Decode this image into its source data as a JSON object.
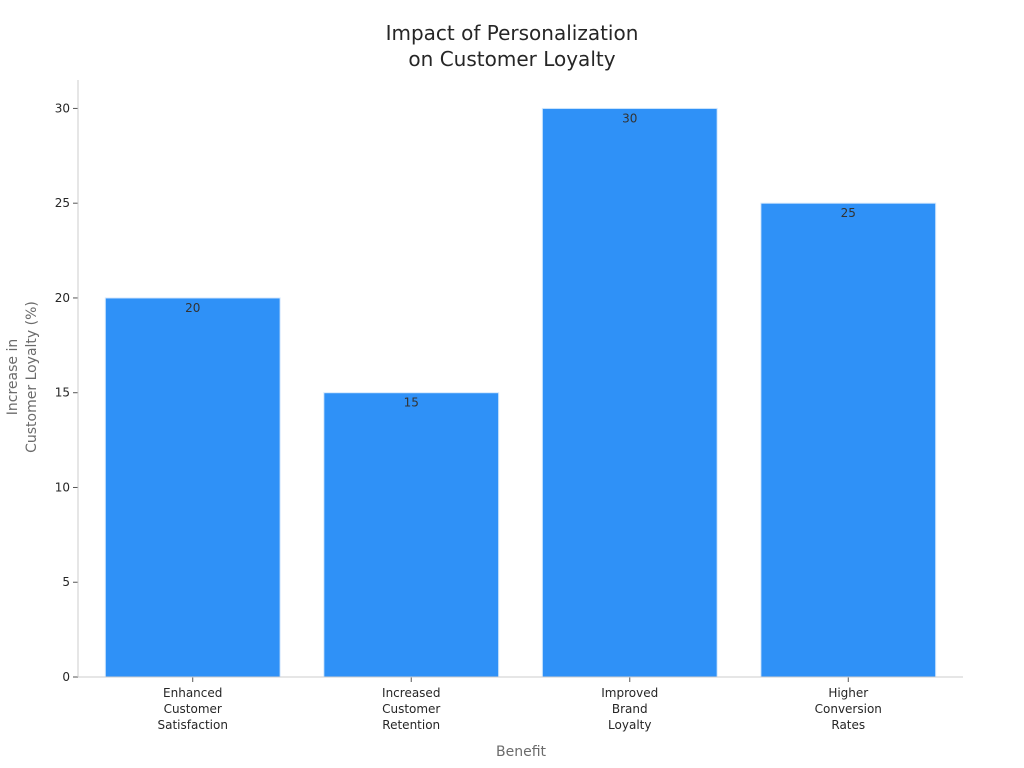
{
  "chart_data": {
    "type": "bar",
    "title": [
      "Impact of Personalization",
      "on Customer Loyalty"
    ],
    "xlabel": "Benefit",
    "ylabel": [
      "Increase in",
      "Customer Loyalty (%)"
    ],
    "categories": [
      [
        "Enhanced",
        "Customer",
        "Satisfaction"
      ],
      [
        "Increased",
        "Customer",
        "Retention"
      ],
      [
        "Improved",
        "Brand",
        "Loyalty"
      ],
      [
        "Higher",
        "Conversion",
        "Rates"
      ]
    ],
    "values": [
      20,
      15,
      30,
      25
    ],
    "data_labels": [
      "20",
      "15",
      "30",
      "25"
    ],
    "yticks": [
      0,
      5,
      10,
      15,
      20,
      25,
      30
    ],
    "ylim": [
      0,
      31.5
    ],
    "grid": false,
    "colors": {
      "bar": "#2f91f7",
      "bar_edge": "#d4e8fd",
      "axis": "#cccccc"
    }
  }
}
